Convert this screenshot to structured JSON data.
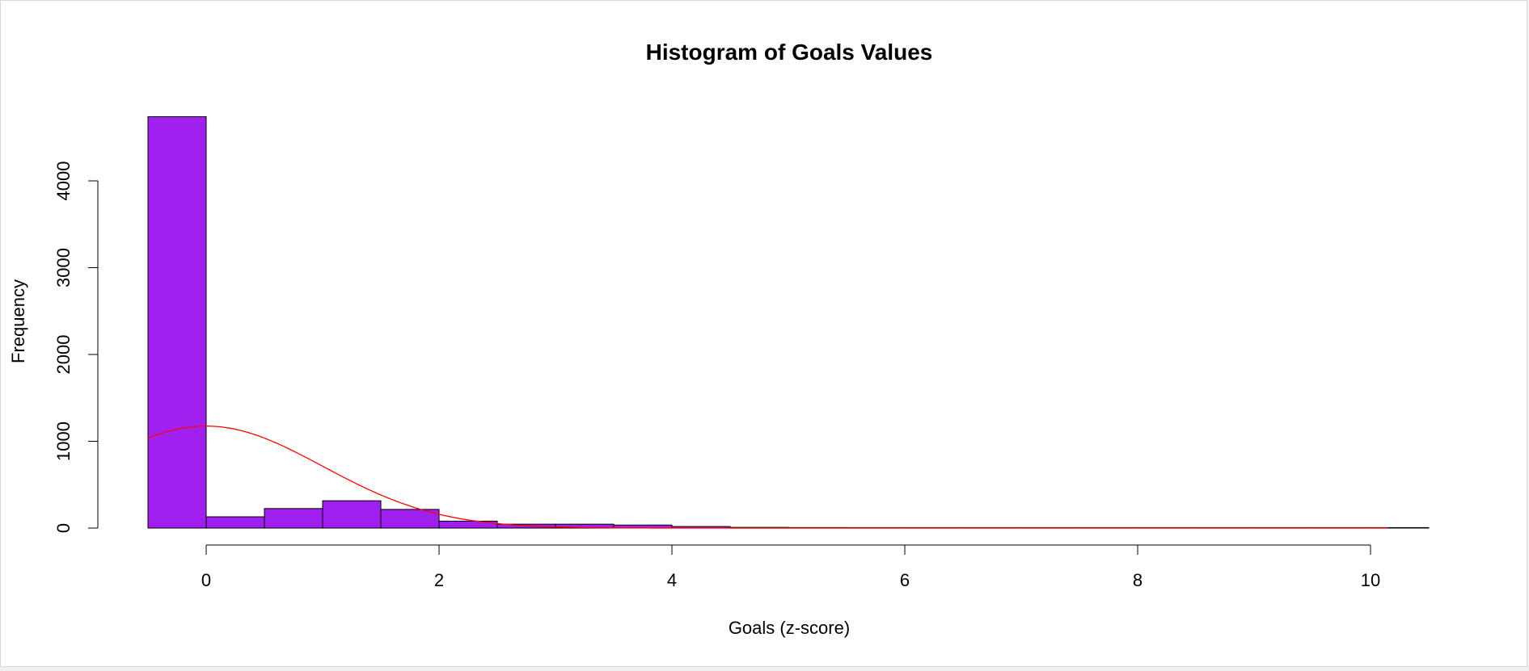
{
  "chart_data": {
    "type": "bar",
    "title": "Histogram of Goals Values",
    "xlabel": "Goals (z-score)",
    "ylabel": "Frequency",
    "xlim": [
      -0.5,
      10.5
    ],
    "ylim": [
      0,
      4750
    ],
    "bin_width": 0.5,
    "bins": [
      {
        "x0": -0.5,
        "x1": 0.0,
        "count": 4740
      },
      {
        "x0": 0.0,
        "x1": 0.5,
        "count": 130
      },
      {
        "x0": 0.5,
        "x1": 1.0,
        "count": 225
      },
      {
        "x0": 1.0,
        "x1": 1.5,
        "count": 315
      },
      {
        "x0": 1.5,
        "x1": 2.0,
        "count": 215
      },
      {
        "x0": 2.0,
        "x1": 2.5,
        "count": 80
      },
      {
        "x0": 2.5,
        "x1": 3.0,
        "count": 45
      },
      {
        "x0": 3.0,
        "x1": 3.5,
        "count": 45
      },
      {
        "x0": 3.5,
        "x1": 4.0,
        "count": 35
      },
      {
        "x0": 4.0,
        "x1": 4.5,
        "count": 18
      },
      {
        "x0": 4.5,
        "x1": 5.0,
        "count": 8
      },
      {
        "x0": 5.0,
        "x1": 5.5,
        "count": 6
      },
      {
        "x0": 5.5,
        "x1": 6.0,
        "count": 5
      },
      {
        "x0": 6.0,
        "x1": 6.5,
        "count": 2
      },
      {
        "x0": 6.5,
        "x1": 7.0,
        "count": 1
      },
      {
        "x0": 7.0,
        "x1": 7.5,
        "count": 1
      },
      {
        "x0": 7.5,
        "x1": 8.0,
        "count": 1
      },
      {
        "x0": 8.0,
        "x1": 8.5,
        "count": 1
      },
      {
        "x0": 8.5,
        "x1": 9.0,
        "count": 0
      },
      {
        "x0": 9.0,
        "x1": 9.5,
        "count": 1
      },
      {
        "x0": 9.5,
        "x1": 10.0,
        "count": 1
      },
      {
        "x0": 10.0,
        "x1": 10.5,
        "count": 1
      }
    ],
    "normal_curve": {
      "peak_x": 0.0,
      "peak_y": 1175,
      "sd": 1.0,
      "x_start": -0.5,
      "x_end": 10.15
    },
    "x_ticks": [
      0,
      2,
      4,
      6,
      8,
      10
    ],
    "y_ticks": [
      0,
      1000,
      2000,
      3000,
      4000
    ],
    "colors": {
      "bar_fill": "#A020F0",
      "bar_stroke": "#000000",
      "curve": "#FF0000"
    }
  }
}
